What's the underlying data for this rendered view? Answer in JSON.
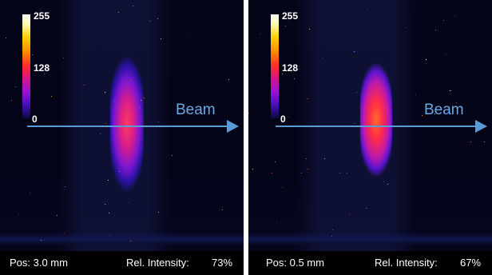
{
  "panels": [
    {
      "colorbar": {
        "max_label": "255",
        "mid_label": "128",
        "min_label": "0"
      },
      "beam_label": "Beam",
      "position_text": "Pos: 3.0 mm",
      "intensity_label": "Rel. Intensity:",
      "intensity_value": "73%",
      "beam_spot_colors": [
        "#ff3a5a",
        "#d81e8c",
        "#7a16d0",
        "#2a12a0"
      ]
    },
    {
      "colorbar": {
        "max_label": "255",
        "mid_label": "128",
        "min_label": "0"
      },
      "beam_label": "Beam",
      "position_text": "Pos: 0.5 mm",
      "intensity_label": "Rel. Intensity:",
      "intensity_value": "67%",
      "beam_spot_colors": [
        "#ff6a2a",
        "#ff2a4a",
        "#c01aa8",
        "#5a14d0"
      ]
    }
  ],
  "colors": {
    "background": "#000000",
    "beam_arrow": "#5b9bd5",
    "beam_text": "#6aa9e2",
    "label_text": "#ffffff"
  }
}
